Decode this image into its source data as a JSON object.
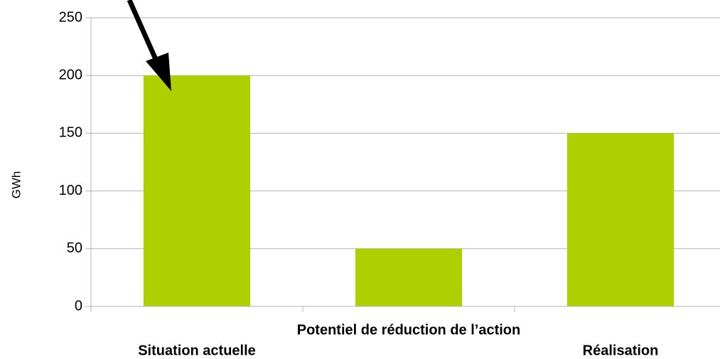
{
  "chart_data": {
    "type": "bar",
    "y_label": "GWh",
    "categories": [
      "Situation actuelle",
      "Potentiel de réduction de l’action",
      "Réalisation"
    ],
    "values": [
      200,
      50,
      150
    ],
    "color": "#aecf00",
    "ylim": [
      0,
      250
    ],
    "yticks": [
      0,
      50,
      100,
      150,
      200,
      250
    ],
    "grid": true
  }
}
